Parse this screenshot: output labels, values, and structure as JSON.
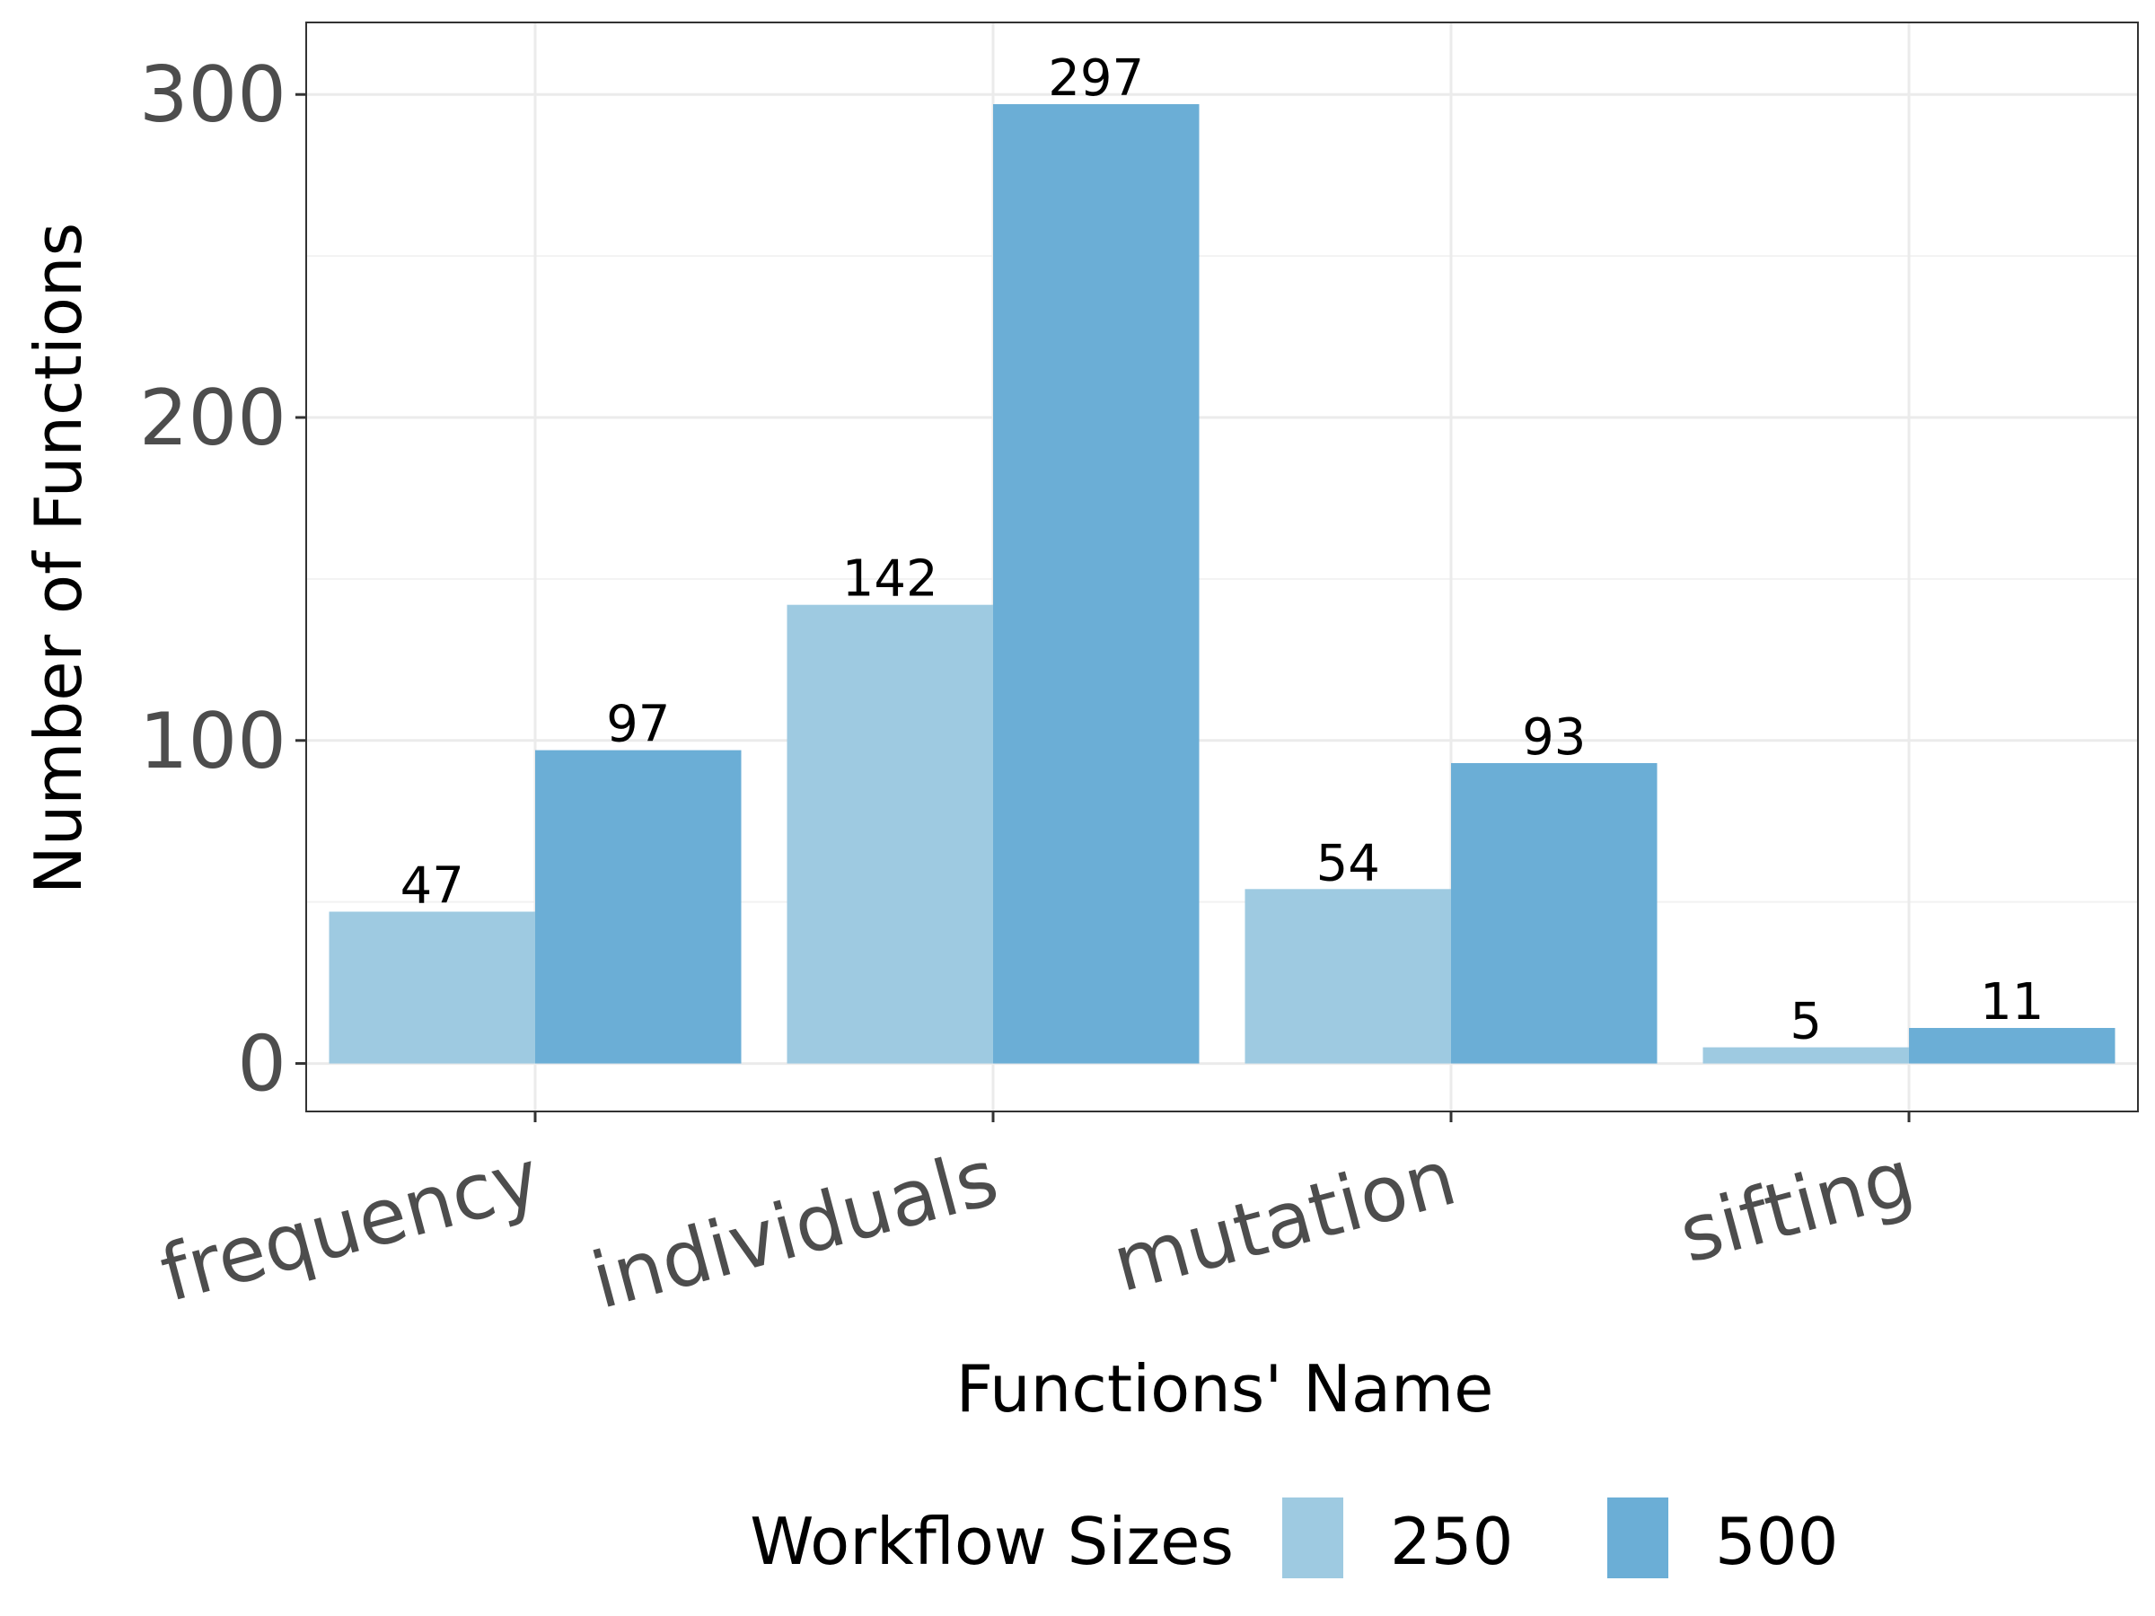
{
  "chart_data": {
    "type": "bar",
    "title": "",
    "xlabel": "Functions' Name",
    "ylabel": "Number of Functions",
    "categories": [
      "frequency",
      "individuals",
      "mutation",
      "sifting"
    ],
    "series": [
      {
        "name": "250",
        "values": [
          47,
          142,
          54,
          5
        ],
        "color": "#9ecae1"
      },
      {
        "name": "500",
        "values": [
          97,
          297,
          93,
          11
        ],
        "color": "#6baed6"
      }
    ],
    "yticks": [
      0,
      100,
      200,
      300
    ],
    "ylim": [
      -14.85,
      322.3
    ],
    "grid": true,
    "legend": {
      "title": "Workflow Sizes",
      "position": "bottom"
    },
    "data_labels": true
  }
}
